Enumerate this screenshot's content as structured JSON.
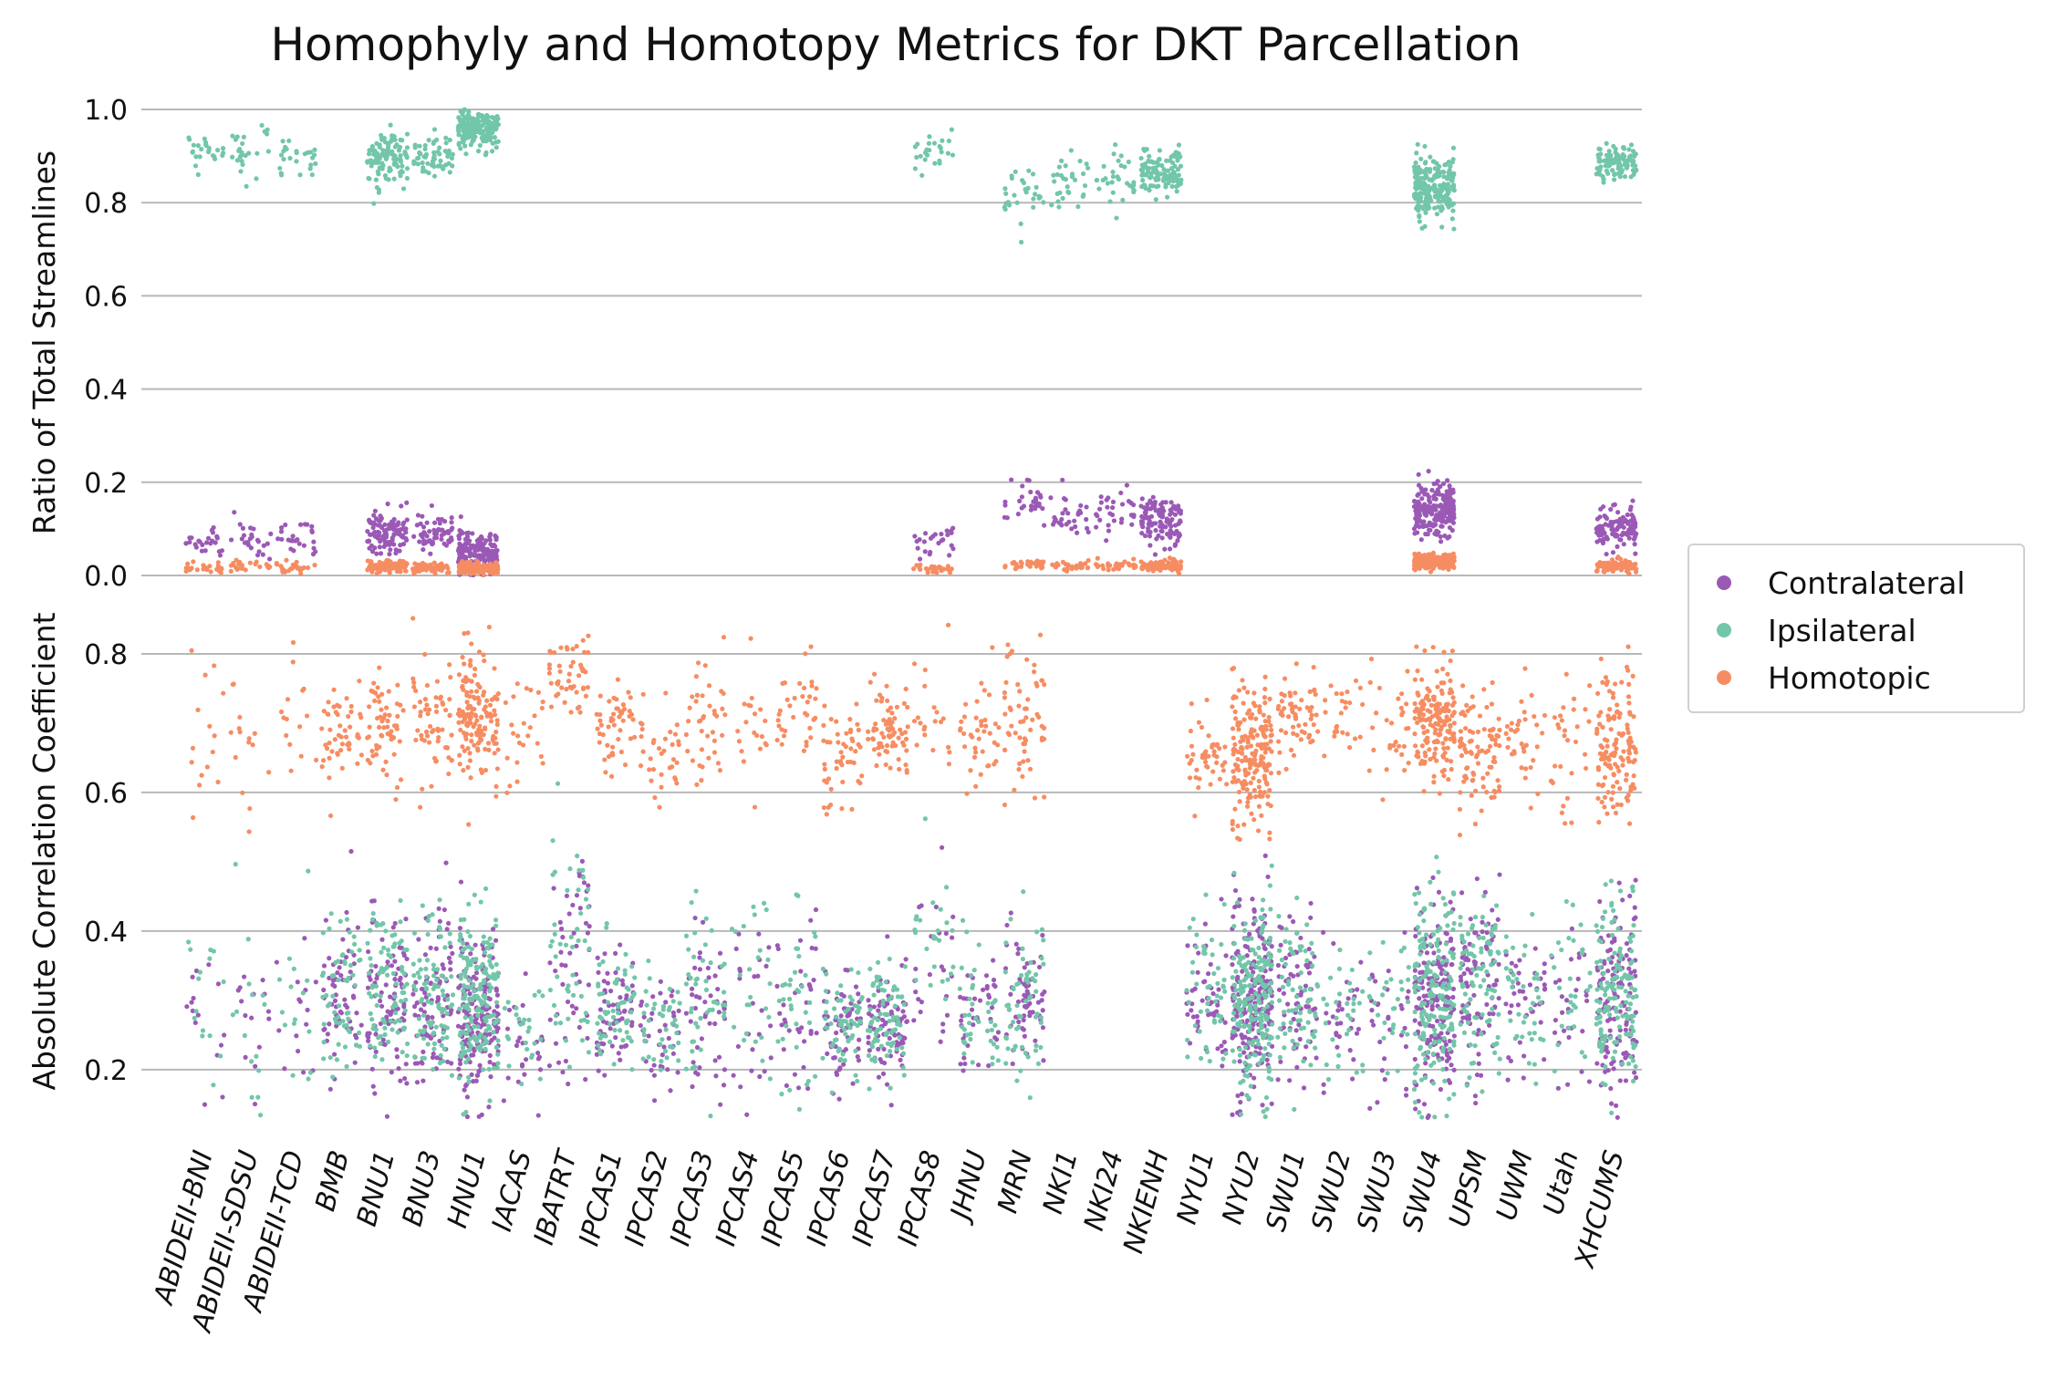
{
  "title": "Homophyly and Homotopy Metrics for DKT Parcellation",
  "sites": [
    "ABIDEII-BNI",
    "ABIDEII-SDSU",
    "ABIDEII-TCD",
    "BMB",
    "BNU1",
    "BNU3",
    "HNU1",
    "IACAS",
    "IBATRT",
    "IPCAS1",
    "IPCAS2",
    "IPCAS3",
    "IPCAS4",
    "IPCAS5",
    "IPCAS6",
    "IPCAS7",
    "IPCAS8",
    "JHNU",
    "MRN",
    "NKI1",
    "NKI24",
    "NKIENH",
    "NYU1",
    "NYU2",
    "SWU1",
    "SWU2",
    "SWU3",
    "SWU4",
    "UPSM",
    "UWM",
    "Utah",
    "XHCUMS"
  ],
  "legend": {
    "items": [
      {
        "label": "Contralateral",
        "color": "#9b59b6"
      },
      {
        "label": "Ipsilateral",
        "color": "#72c6a9"
      },
      {
        "label": "Homotopic",
        "color": "#f68d62"
      }
    ],
    "placement": "center-right"
  },
  "chart_data": [
    {
      "type": "scatter",
      "ylabel": "Ratio of Total Streamlines",
      "ylim": [
        0.0,
        1.0
      ],
      "yticks": [
        "0.0",
        "0.2",
        "0.4",
        "0.6",
        "0.8",
        "1.0"
      ],
      "grid": true,
      "note_sites_present": [
        "ABIDEII-BNI",
        "ABIDEII-SDSU",
        "ABIDEII-TCD",
        "BNU1",
        "BNU3",
        "HNU1",
        "IPCAS8",
        "MRN",
        "NKI1",
        "NKI24",
        "NKIENH",
        "SWU4",
        "XHCUMS"
      ],
      "series": [
        {
          "name": "Contralateral",
          "stats": {
            "ABIDEII-BNI": [
              0.075,
              0.02,
              25
            ],
            "ABIDEII-SDSU": [
              0.085,
              0.025,
              25
            ],
            "ABIDEII-TCD": [
              0.08,
              0.02,
              25
            ],
            "BNU1": [
              0.09,
              0.025,
              110
            ],
            "BNU3": [
              0.09,
              0.02,
              60
            ],
            "HNU1": [
              0.05,
              0.02,
              180
            ],
            "IPCAS8": [
              0.075,
              0.02,
              25
            ],
            "MRN": [
              0.16,
              0.025,
              30
            ],
            "NKI1": [
              0.13,
              0.025,
              30
            ],
            "NKI24": [
              0.13,
              0.025,
              30
            ],
            "NKIENH": [
              0.12,
              0.025,
              110
            ],
            "SWU4": [
              0.14,
              0.03,
              220
            ],
            "XHCUMS": [
              0.105,
              0.02,
              110
            ]
          }
        },
        {
          "name": "Ipsilateral",
          "stats": {
            "ABIDEII-BNI": [
              0.915,
              0.02,
              25
            ],
            "ABIDEII-SDSU": [
              0.895,
              0.03,
              25
            ],
            "ABIDEII-TCD": [
              0.905,
              0.025,
              25
            ],
            "BNU1": [
              0.895,
              0.03,
              110
            ],
            "BNU3": [
              0.9,
              0.025,
              60
            ],
            "HNU1": [
              0.955,
              0.02,
              180
            ],
            "IPCAS8": [
              0.915,
              0.02,
              25
            ],
            "MRN": [
              0.815,
              0.03,
              30
            ],
            "NKI1": [
              0.855,
              0.03,
              30
            ],
            "NKI24": [
              0.855,
              0.03,
              30
            ],
            "NKIENH": [
              0.865,
              0.025,
              110
            ],
            "SWU4": [
              0.83,
              0.035,
              220
            ],
            "XHCUMS": [
              0.885,
              0.02,
              110
            ]
          }
        },
        {
          "name": "Homotopic",
          "stats": {
            "ABIDEII-BNI": [
              0.015,
              0.006,
              25
            ],
            "ABIDEII-SDSU": [
              0.018,
              0.006,
              25
            ],
            "ABIDEII-TCD": [
              0.016,
              0.006,
              25
            ],
            "BNU1": [
              0.02,
              0.006,
              110
            ],
            "BNU3": [
              0.016,
              0.005,
              60
            ],
            "HNU1": [
              0.015,
              0.006,
              180
            ],
            "IPCAS8": [
              0.014,
              0.005,
              25
            ],
            "MRN": [
              0.025,
              0.006,
              30
            ],
            "NKI1": [
              0.022,
              0.006,
              30
            ],
            "NKI24": [
              0.022,
              0.006,
              30
            ],
            "NKIENH": [
              0.02,
              0.006,
              110
            ],
            "SWU4": [
              0.03,
              0.008,
              220
            ],
            "XHCUMS": [
              0.02,
              0.006,
              110
            ]
          }
        }
      ]
    },
    {
      "type": "scatter",
      "ylabel": "Absolute Correlation Coefficient",
      "ylim": [
        0.13,
        0.9
      ],
      "yticks": [
        "0.2",
        "0.4",
        "0.6",
        "0.8"
      ],
      "grid": true,
      "series": [
        {
          "name": "Contralateral",
          "stats": {
            "ABIDEII-BNI": [
              0.27,
              0.06,
              15
            ],
            "ABIDEII-SDSU": [
              0.28,
              0.08,
              15
            ],
            "ABIDEII-TCD": [
              0.28,
              0.07,
              15
            ],
            "BMB": [
              0.3,
              0.06,
              60
            ],
            "BNU1": [
              0.3,
              0.06,
              90
            ],
            "BNU3": [
              0.3,
              0.06,
              90
            ],
            "HNU1": [
              0.28,
              0.06,
              180
            ],
            "IACAS": [
              0.24,
              0.04,
              25
            ],
            "IBATRT": [
              0.36,
              0.08,
              50
            ],
            "IPCAS1": [
              0.28,
              0.05,
              60
            ],
            "IPCAS2": [
              0.25,
              0.04,
              40
            ],
            "IPCAS3": [
              0.28,
              0.06,
              45
            ],
            "IPCAS4": [
              0.3,
              0.07,
              25
            ],
            "IPCAS5": [
              0.3,
              0.07,
              35
            ],
            "IPCAS6": [
              0.26,
              0.04,
              60
            ],
            "IPCAS7": [
              0.26,
              0.04,
              80
            ],
            "IPCAS8": [
              0.36,
              0.08,
              25
            ],
            "JHNU": [
              0.28,
              0.05,
              40
            ],
            "MRN": [
              0.29,
              0.06,
              60
            ],
            "NYU1": [
              0.3,
              0.06,
              50
            ],
            "NYU2": [
              0.3,
              0.07,
              220
            ],
            "SWU1": [
              0.3,
              0.06,
              70
            ],
            "SWU2": [
              0.27,
              0.05,
              30
            ],
            "SWU3": [
              0.28,
              0.05,
              30
            ],
            "SWU4": [
              0.3,
              0.07,
              180
            ],
            "UPSM": [
              0.32,
              0.07,
              90
            ],
            "UWM": [
              0.29,
              0.05,
              40
            ],
            "Utah": [
              0.29,
              0.06,
              30
            ],
            "XHCUMS": [
              0.3,
              0.07,
              140
            ]
          }
        },
        {
          "name": "Ipsilateral",
          "stats": {
            "ABIDEII-BNI": [
              0.28,
              0.06,
              15
            ],
            "ABIDEII-SDSU": [
              0.3,
              0.08,
              15
            ],
            "ABIDEII-TCD": [
              0.29,
              0.07,
              15
            ],
            "BMB": [
              0.31,
              0.06,
              60
            ],
            "BNU1": [
              0.31,
              0.06,
              90
            ],
            "BNU3": [
              0.31,
              0.06,
              90
            ],
            "HNU1": [
              0.3,
              0.06,
              180
            ],
            "IACAS": [
              0.25,
              0.04,
              25
            ],
            "IBATRT": [
              0.37,
              0.08,
              50
            ],
            "IPCAS1": [
              0.29,
              0.05,
              60
            ],
            "IPCAS2": [
              0.26,
              0.04,
              40
            ],
            "IPCAS3": [
              0.29,
              0.06,
              45
            ],
            "IPCAS4": [
              0.31,
              0.07,
              25
            ],
            "IPCAS5": [
              0.31,
              0.07,
              35
            ],
            "IPCAS6": [
              0.27,
              0.04,
              60
            ],
            "IPCAS7": [
              0.27,
              0.04,
              80
            ],
            "IPCAS8": [
              0.37,
              0.08,
              25
            ],
            "JHNU": [
              0.29,
              0.05,
              40
            ],
            "MRN": [
              0.3,
              0.06,
              60
            ],
            "NYU1": [
              0.31,
              0.06,
              50
            ],
            "NYU2": [
              0.31,
              0.07,
              220
            ],
            "SWU1": [
              0.31,
              0.06,
              70
            ],
            "SWU2": [
              0.28,
              0.05,
              30
            ],
            "SWU3": [
              0.29,
              0.05,
              30
            ],
            "SWU4": [
              0.31,
              0.07,
              180
            ],
            "UPSM": [
              0.33,
              0.07,
              90
            ],
            "UWM": [
              0.3,
              0.05,
              40
            ],
            "Utah": [
              0.3,
              0.06,
              30
            ],
            "XHCUMS": [
              0.31,
              0.07,
              140
            ]
          }
        },
        {
          "name": "Homotopic",
          "stats": {
            "ABIDEII-BNI": [
              0.66,
              0.07,
              15
            ],
            "ABIDEII-SDSU": [
              0.68,
              0.07,
              15
            ],
            "ABIDEII-TCD": [
              0.7,
              0.07,
              15
            ],
            "BMB": [
              0.69,
              0.04,
              50
            ],
            "BNU1": [
              0.69,
              0.04,
              60
            ],
            "BNU3": [
              0.7,
              0.04,
              60
            ],
            "HNU1": [
              0.71,
              0.05,
              150
            ],
            "IACAS": [
              0.68,
              0.04,
              25
            ],
            "IBATRT": [
              0.77,
              0.03,
              50
            ],
            "IPCAS1": [
              0.7,
              0.03,
              50
            ],
            "IPCAS2": [
              0.66,
              0.04,
              35
            ],
            "IPCAS3": [
              0.7,
              0.05,
              40
            ],
            "IPCAS4": [
              0.69,
              0.04,
              20
            ],
            "IPCAS5": [
              0.72,
              0.04,
              35
            ],
            "IPCAS6": [
              0.65,
              0.05,
              50
            ],
            "IPCAS7": [
              0.68,
              0.04,
              70
            ],
            "IPCAS8": [
              0.72,
              0.05,
              20
            ],
            "JHNU": [
              0.69,
              0.04,
              40
            ],
            "MRN": [
              0.7,
              0.05,
              60
            ],
            "NYU1": [
              0.65,
              0.04,
              45
            ],
            "NYU2": [
              0.65,
              0.05,
              200
            ],
            "SWU1": [
              0.71,
              0.03,
              60
            ],
            "SWU2": [
              0.72,
              0.03,
              25
            ],
            "SWU3": [
              0.7,
              0.04,
              30
            ],
            "SWU4": [
              0.7,
              0.04,
              170
            ],
            "UPSM": [
              0.66,
              0.05,
              90
            ],
            "UWM": [
              0.68,
              0.04,
              35
            ],
            "Utah": [
              0.66,
              0.05,
              30
            ],
            "XHCUMS": [
              0.67,
              0.05,
              130
            ]
          }
        }
      ]
    }
  ]
}
